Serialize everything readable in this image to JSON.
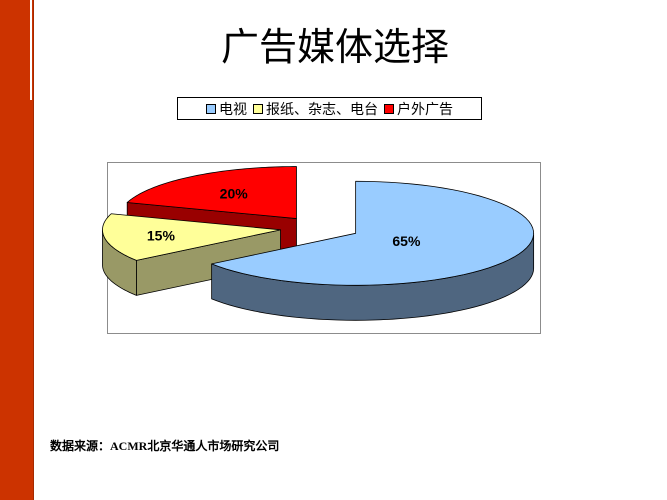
{
  "slide": {
    "title": "广告媒体选择",
    "source": "数据来源：ACMR北京华通人市场研究公司"
  },
  "colors": {
    "accent_bar": "#cc3300",
    "frame_border": "#8c8c8c"
  },
  "chart_data": {
    "type": "pie",
    "style": "3d-exploded",
    "categories": [
      "电视",
      "报纸、杂志、电台",
      "户外广告"
    ],
    "values": [
      65,
      15,
      20
    ],
    "data_labels": [
      "65%",
      "15%",
      "20%"
    ],
    "legend": {
      "position": "top",
      "entries": [
        "电视",
        "报纸、杂志、电台",
        "户外广告"
      ]
    },
    "colors": [
      "#99ccff",
      "#ffff99",
      "#ff0000"
    ],
    "side_colors": [
      "#4f6680",
      "#999966",
      "#990000"
    ]
  }
}
